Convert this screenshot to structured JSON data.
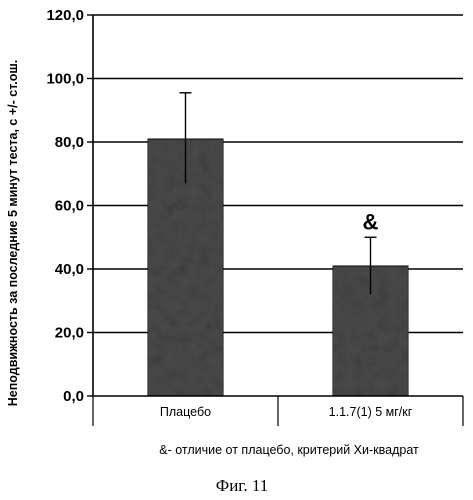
{
  "chart_data": {
    "type": "bar",
    "categories": [
      "Плацебо",
      "1.1.7(1)  5 мг/кг"
    ],
    "values": [
      81.0,
      41.0
    ],
    "error_upper": [
      95.5,
      50.0
    ],
    "error_lower": [
      67.0,
      32.0
    ],
    "bar_annotations": [
      "",
      "&"
    ],
    "ylabel": "Неподвижность за последние 5 минут теста, с +/- ст.ош.",
    "ylim": [
      0,
      120
    ],
    "yticks": [
      "0,0",
      "20,0",
      "40,0",
      "60,0",
      "80,0",
      "100,0",
      "120,0"
    ],
    "grid": "horizontal",
    "bar_color": "#4a4a4a"
  },
  "footnote": "&- отличие от плацебо, критерий Хи-квадрат",
  "figure_caption": "Фиг. 11"
}
